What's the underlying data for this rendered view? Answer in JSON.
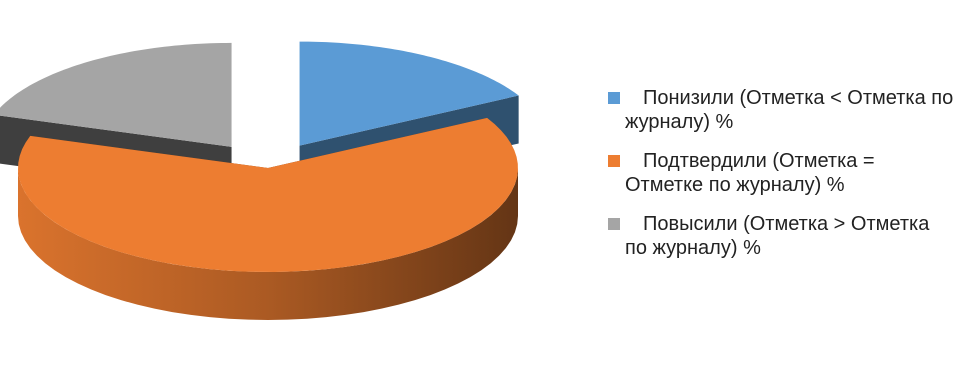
{
  "chart_data": {
    "type": "pie",
    "style": "3d-exploded",
    "categories": [
      "Понизили (Отметка < Отметка по журналу) %",
      "Подтвердили (Отметка = Отметке по журналу) %",
      "Повысили (Отметка > Отметка по журналу) %"
    ],
    "values": [
      17,
      63,
      20
    ],
    "colors": [
      "#5B9BD5",
      "#ED7D31",
      "#A5A5A5"
    ],
    "title": "",
    "legend_position": "right"
  }
}
